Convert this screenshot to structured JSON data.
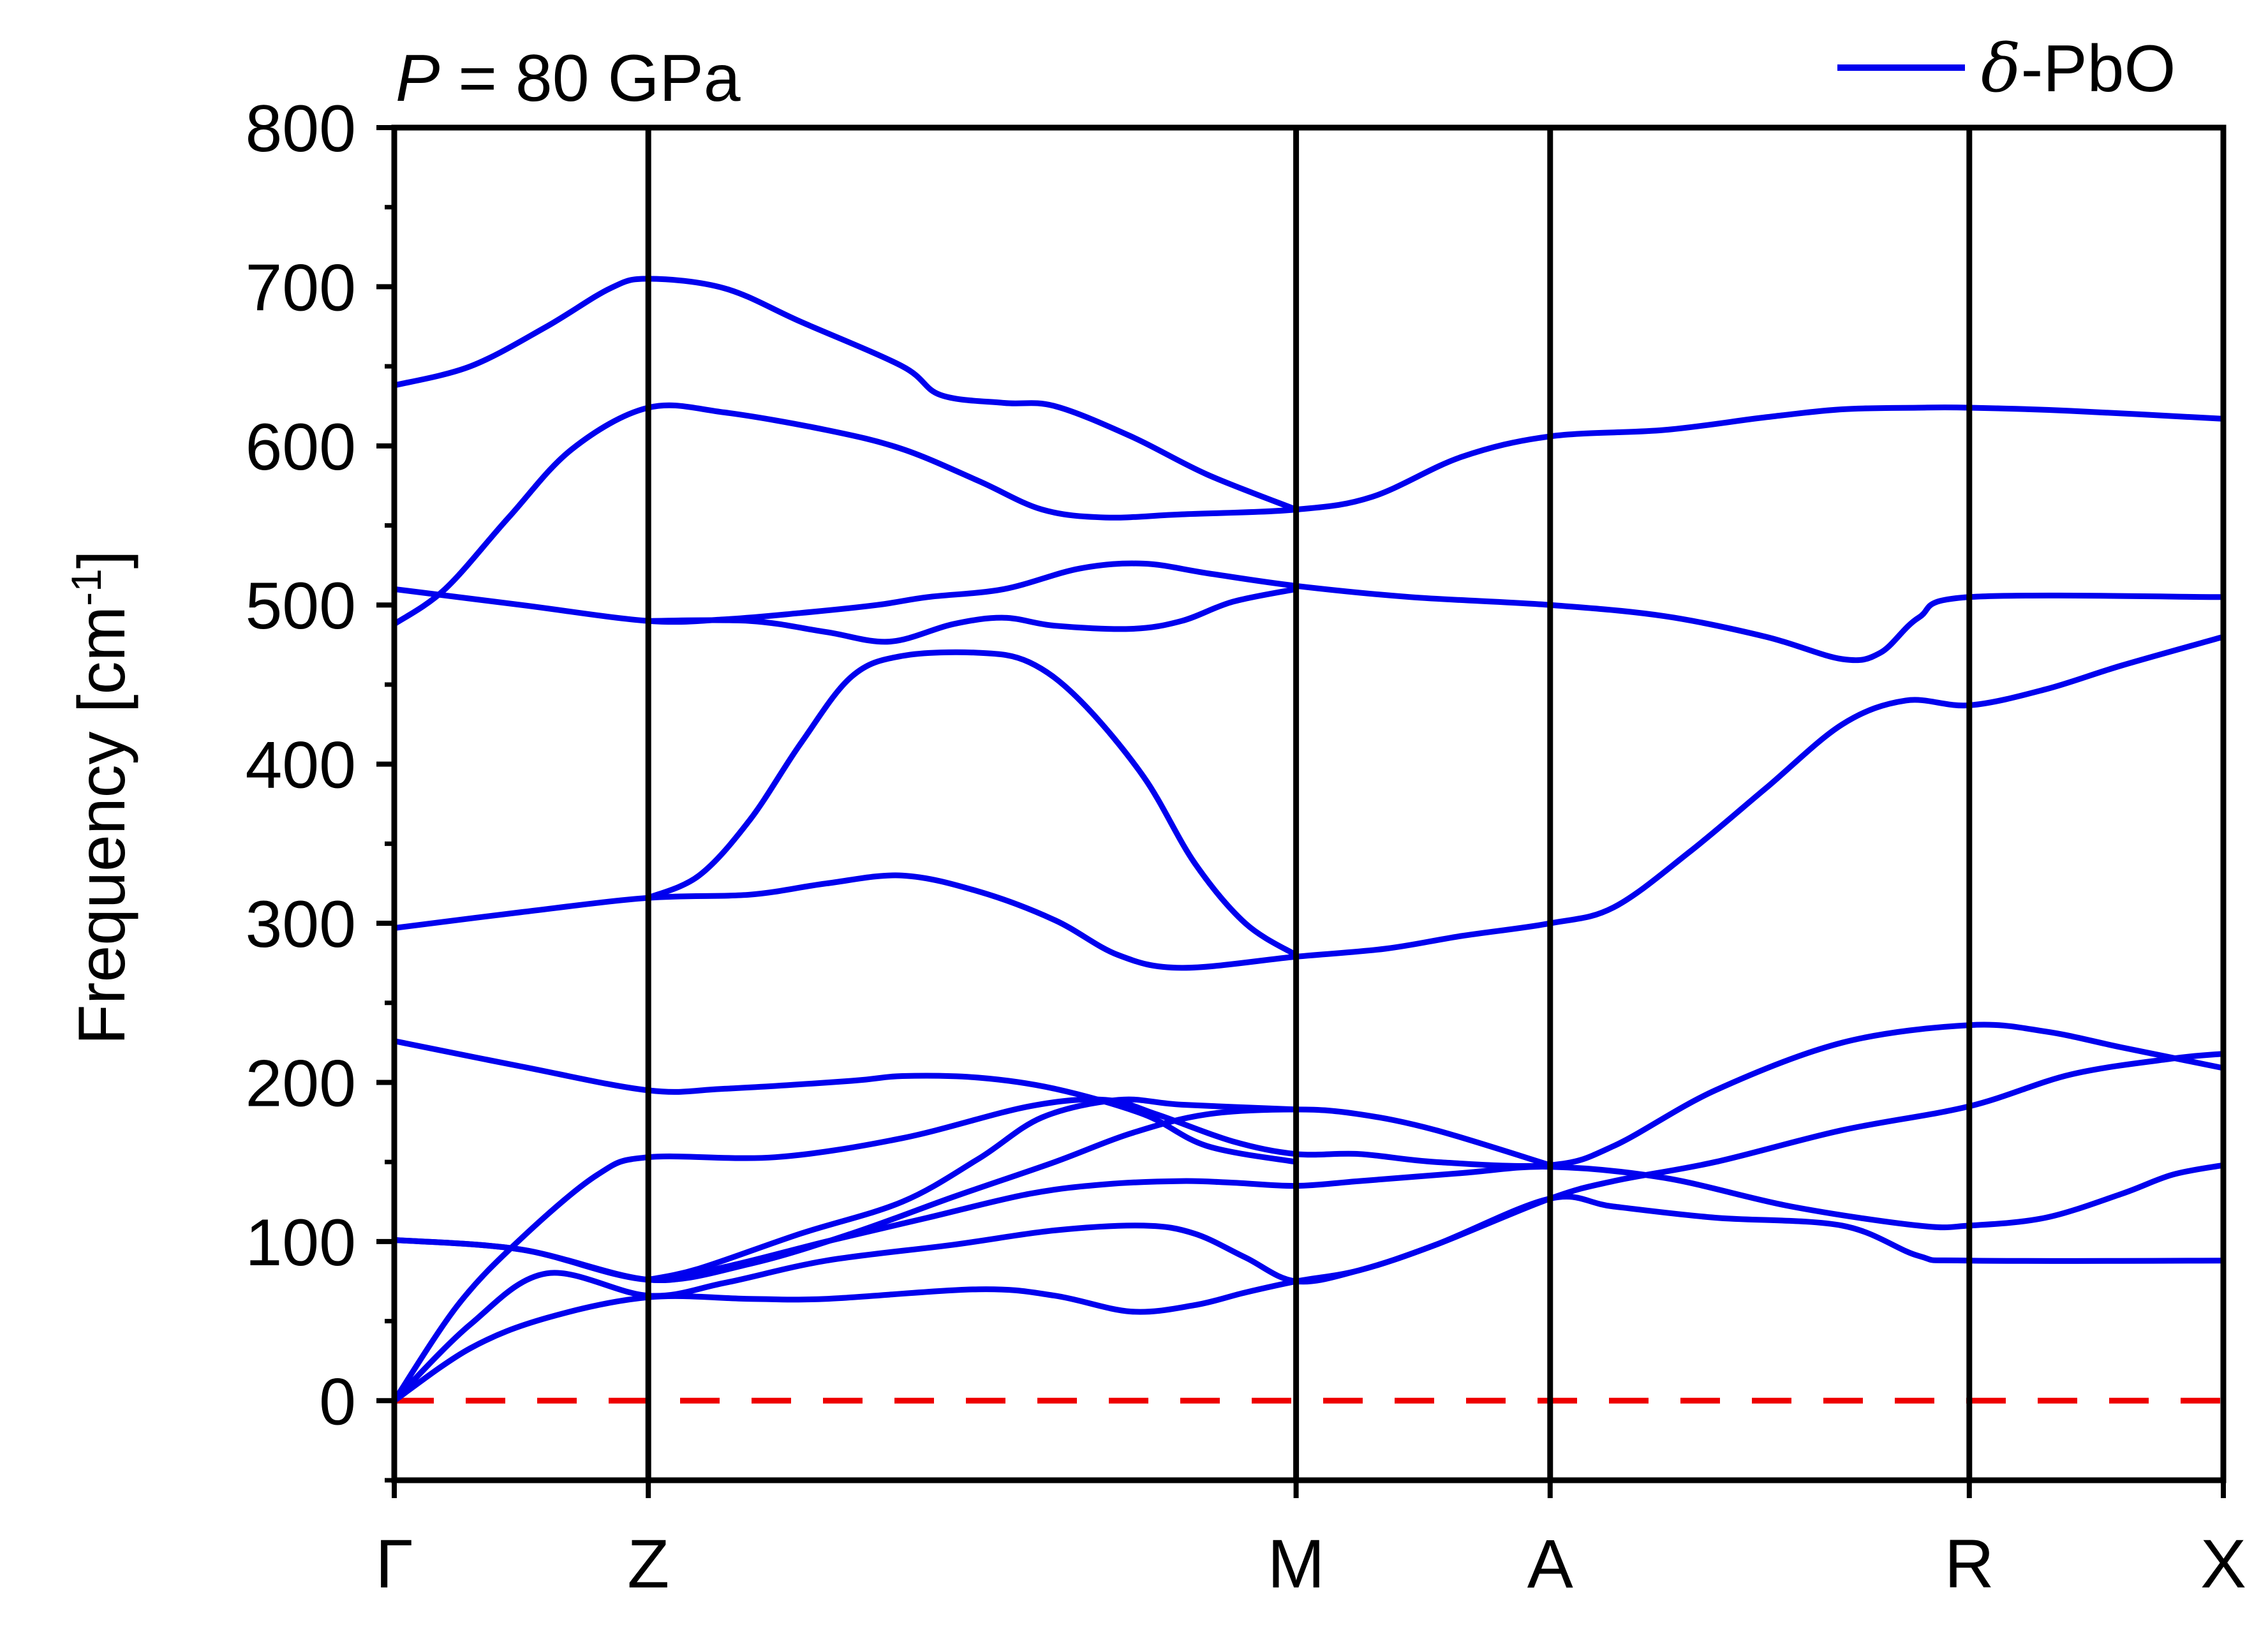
{
  "chart_data": {
    "type": "line",
    "title": "",
    "annotation": {
      "italic": "P",
      "text": " = 80 GPa"
    },
    "xlabel": "",
    "ylabel": "Frequency [cm",
    "ylabel_sup": "-1",
    "ylabel_close": "]",
    "ylim": [
      -50,
      800
    ],
    "yticks": [
      0,
      100,
      200,
      300,
      400,
      500,
      600,
      700,
      800
    ],
    "ytick_labels": [
      "0",
      "100",
      "200",
      "300",
      "400",
      "500",
      "600",
      "700",
      "800"
    ],
    "xlim": [
      0,
      7.2
    ],
    "kpoints": [
      {
        "label": "Γ",
        "x": 0
      },
      {
        "label": "Z",
        "x": 1.0
      },
      {
        "label": "M",
        "x": 3.55
      },
      {
        "label": "A",
        "x": 4.55
      },
      {
        "label": "R",
        "x": 6.2
      },
      {
        "label": "X",
        "x": 7.2
      }
    ],
    "grid": false,
    "legend": {
      "position": "top-right",
      "entries": [
        {
          "italic": "δ",
          "text": "-PbO",
          "color": "#0000ee"
        }
      ]
    },
    "zero_line": {
      "y": 0,
      "color": "#ee0000",
      "style": "dashed"
    },
    "series_color": "#0000ee",
    "series": [
      {
        "points": [
          [
            0,
            0
          ],
          [
            0.3,
            33
          ],
          [
            0.6,
            52
          ],
          [
            1.0,
            65
          ],
          [
            1.4,
            64
          ],
          [
            1.7,
            64
          ],
          [
            2.3,
            70
          ],
          [
            2.6,
            66
          ],
          [
            2.9,
            56
          ],
          [
            3.15,
            60
          ],
          [
            3.35,
            68
          ],
          [
            3.55,
            75
          ],
          [
            3.8,
            82
          ],
          [
            4.1,
            98
          ],
          [
            4.55,
            127
          ],
          [
            4.8,
            122
          ],
          [
            5.2,
            115
          ],
          [
            5.7,
            110
          ],
          [
            6.0,
            91
          ],
          [
            6.2,
            88
          ],
          [
            7.2,
            88
          ]
        ]
      },
      {
        "points": [
          [
            0,
            0
          ],
          [
            0.3,
            48
          ],
          [
            0.6,
            80
          ],
          [
            1.0,
            66
          ],
          [
            1.3,
            74
          ],
          [
            1.7,
            88
          ],
          [
            2.2,
            98
          ],
          [
            2.6,
            107
          ],
          [
            2.95,
            110
          ],
          [
            3.15,
            105
          ],
          [
            3.35,
            90
          ],
          [
            3.55,
            75
          ],
          [
            3.8,
            82
          ],
          [
            4.1,
            98
          ],
          [
            4.55,
            127
          ],
          [
            4.8,
            138
          ],
          [
            5.2,
            150
          ],
          [
            5.7,
            170
          ],
          [
            6.2,
            185
          ],
          [
            6.6,
            205
          ],
          [
            7.0,
            215
          ],
          [
            7.2,
            218
          ]
        ]
      },
      {
        "points": [
          [
            0,
            0
          ],
          [
            0.25,
            60
          ],
          [
            0.5,
            102
          ],
          [
            0.8,
            142
          ],
          [
            1.0,
            153
          ],
          [
            1.5,
            153
          ],
          [
            2.0,
            165
          ],
          [
            2.5,
            185
          ],
          [
            2.8,
            189
          ],
          [
            3.0,
            180
          ],
          [
            3.3,
            163
          ],
          [
            3.55,
            155
          ],
          [
            3.8,
            155
          ],
          [
            4.1,
            150
          ],
          [
            4.55,
            148
          ],
          [
            4.8,
            160
          ],
          [
            5.2,
            195
          ],
          [
            5.7,
            225
          ],
          [
            6.2,
            236
          ],
          [
            6.5,
            232
          ],
          [
            6.8,
            222
          ],
          [
            7.2,
            209
          ]
        ]
      },
      {
        "points": [
          [
            0,
            101
          ],
          [
            0.5,
            95
          ],
          [
            1.0,
            76
          ],
          [
            1.3,
            84
          ],
          [
            1.7,
            100
          ],
          [
            2.1,
            115
          ],
          [
            2.5,
            130
          ],
          [
            2.8,
            136
          ],
          [
            3.1,
            138
          ],
          [
            3.3,
            137
          ],
          [
            3.55,
            135
          ],
          [
            3.8,
            138
          ],
          [
            4.2,
            143
          ],
          [
            4.55,
            147
          ],
          [
            5.0,
            140
          ],
          [
            5.5,
            122
          ],
          [
            6.0,
            110
          ],
          [
            6.2,
            110
          ],
          [
            6.5,
            115
          ],
          [
            6.8,
            130
          ],
          [
            7.0,
            142
          ],
          [
            7.2,
            148
          ]
        ]
      },
      {
        "points": [
          [
            0,
            101
          ],
          [
            0.5,
            95
          ],
          [
            1.0,
            76
          ],
          [
            1.4,
            86
          ],
          [
            1.8,
            105
          ],
          [
            2.2,
            128
          ],
          [
            2.6,
            150
          ],
          [
            2.9,
            168
          ],
          [
            3.2,
            180
          ],
          [
            3.55,
            183
          ],
          [
            3.8,
            180
          ],
          [
            4.1,
            170
          ],
          [
            4.55,
            148
          ]
        ]
      },
      {
        "points": [
          [
            0,
            226
          ],
          [
            0.5,
            210
          ],
          [
            1.0,
            195
          ],
          [
            1.3,
            196
          ],
          [
            1.8,
            201
          ],
          [
            2.0,
            204
          ],
          [
            2.3,
            203
          ],
          [
            2.6,
            196
          ],
          [
            2.95,
            180
          ],
          [
            3.2,
            160
          ],
          [
            3.55,
            150
          ]
        ]
      },
      {
        "points": [
          [
            1.0,
            76
          ],
          [
            1.2,
            83
          ],
          [
            1.6,
            105
          ],
          [
            2.0,
            125
          ],
          [
            2.3,
            152
          ],
          [
            2.55,
            178
          ],
          [
            2.85,
            189
          ],
          [
            3.1,
            186
          ],
          [
            3.55,
            183
          ]
        ]
      },
      {
        "points": [
          [
            0,
            297
          ],
          [
            0.5,
            307
          ],
          [
            1.0,
            316
          ],
          [
            1.4,
            318
          ],
          [
            1.7,
            325
          ],
          [
            2.0,
            330
          ],
          [
            2.3,
            320
          ],
          [
            2.6,
            302
          ],
          [
            2.85,
            280
          ],
          [
            3.1,
            272
          ],
          [
            3.55,
            279
          ],
          [
            3.9,
            284
          ],
          [
            4.2,
            292
          ],
          [
            4.55,
            300
          ],
          [
            4.8,
            310
          ],
          [
            5.1,
            345
          ],
          [
            5.4,
            385
          ],
          [
            5.7,
            425
          ],
          [
            5.95,
            440
          ],
          [
            6.2,
            437
          ],
          [
            6.5,
            447
          ],
          [
            6.8,
            462
          ],
          [
            7.2,
            480
          ]
        ]
      },
      {
        "points": [
          [
            1.0,
            316
          ],
          [
            1.2,
            330
          ],
          [
            1.4,
            365
          ],
          [
            1.6,
            413
          ],
          [
            1.8,
            455
          ],
          [
            2.0,
            468
          ],
          [
            2.3,
            470
          ],
          [
            2.5,
            464
          ],
          [
            2.7,
            440
          ],
          [
            2.95,
            392
          ],
          [
            3.15,
            338
          ],
          [
            3.35,
            300
          ],
          [
            3.55,
            280
          ]
        ]
      },
      {
        "points": [
          [
            0,
            488
          ],
          [
            0.2,
            510
          ],
          [
            0.45,
            555
          ],
          [
            0.7,
            598
          ],
          [
            1.0,
            624
          ],
          [
            1.3,
            621
          ],
          [
            1.7,
            610
          ],
          [
            2.0,
            598
          ],
          [
            2.3,
            578
          ],
          [
            2.55,
            560
          ],
          [
            2.8,
            555
          ],
          [
            3.1,
            557
          ],
          [
            3.55,
            560
          ],
          [
            3.85,
            568
          ],
          [
            4.2,
            593
          ],
          [
            4.55,
            606
          ],
          [
            5.0,
            610
          ],
          [
            5.4,
            618
          ],
          [
            5.7,
            623
          ],
          [
            6.0,
            624
          ],
          [
            6.2,
            624
          ],
          [
            6.6,
            622
          ],
          [
            7.2,
            617
          ]
        ]
      },
      {
        "points": [
          [
            0,
            638
          ],
          [
            0.3,
            650
          ],
          [
            0.6,
            675
          ],
          [
            0.85,
            699
          ],
          [
            1.0,
            705
          ],
          [
            1.3,
            699
          ],
          [
            1.6,
            678
          ],
          [
            2.0,
            650
          ],
          [
            2.15,
            632
          ],
          [
            2.4,
            627
          ],
          [
            2.6,
            625
          ],
          [
            2.9,
            606
          ],
          [
            3.2,
            582
          ],
          [
            3.55,
            560
          ]
        ]
      },
      {
        "points": [
          [
            0,
            510
          ],
          [
            0.5,
            500
          ],
          [
            1.0,
            490
          ],
          [
            1.3,
            491
          ],
          [
            1.6,
            495
          ],
          [
            1.9,
            500
          ],
          [
            2.1,
            505
          ],
          [
            2.4,
            510
          ],
          [
            2.7,
            523
          ],
          [
            2.95,
            526
          ],
          [
            3.2,
            520
          ],
          [
            3.55,
            512
          ],
          [
            4.0,
            505
          ],
          [
            4.55,
            500
          ],
          [
            5.0,
            493
          ],
          [
            5.4,
            480
          ],
          [
            5.7,
            466
          ],
          [
            5.85,
            470
          ],
          [
            6.0,
            492
          ],
          [
            6.2,
            505
          ],
          [
            7.2,
            505
          ]
        ]
      },
      {
        "points": [
          [
            1.0,
            490
          ],
          [
            1.4,
            490
          ],
          [
            1.7,
            483
          ],
          [
            1.95,
            477
          ],
          [
            2.2,
            488
          ],
          [
            2.4,
            492
          ],
          [
            2.6,
            487
          ],
          [
            2.9,
            485
          ],
          [
            3.1,
            490
          ],
          [
            3.3,
            502
          ],
          [
            3.55,
            510
          ]
        ]
      }
    ]
  }
}
